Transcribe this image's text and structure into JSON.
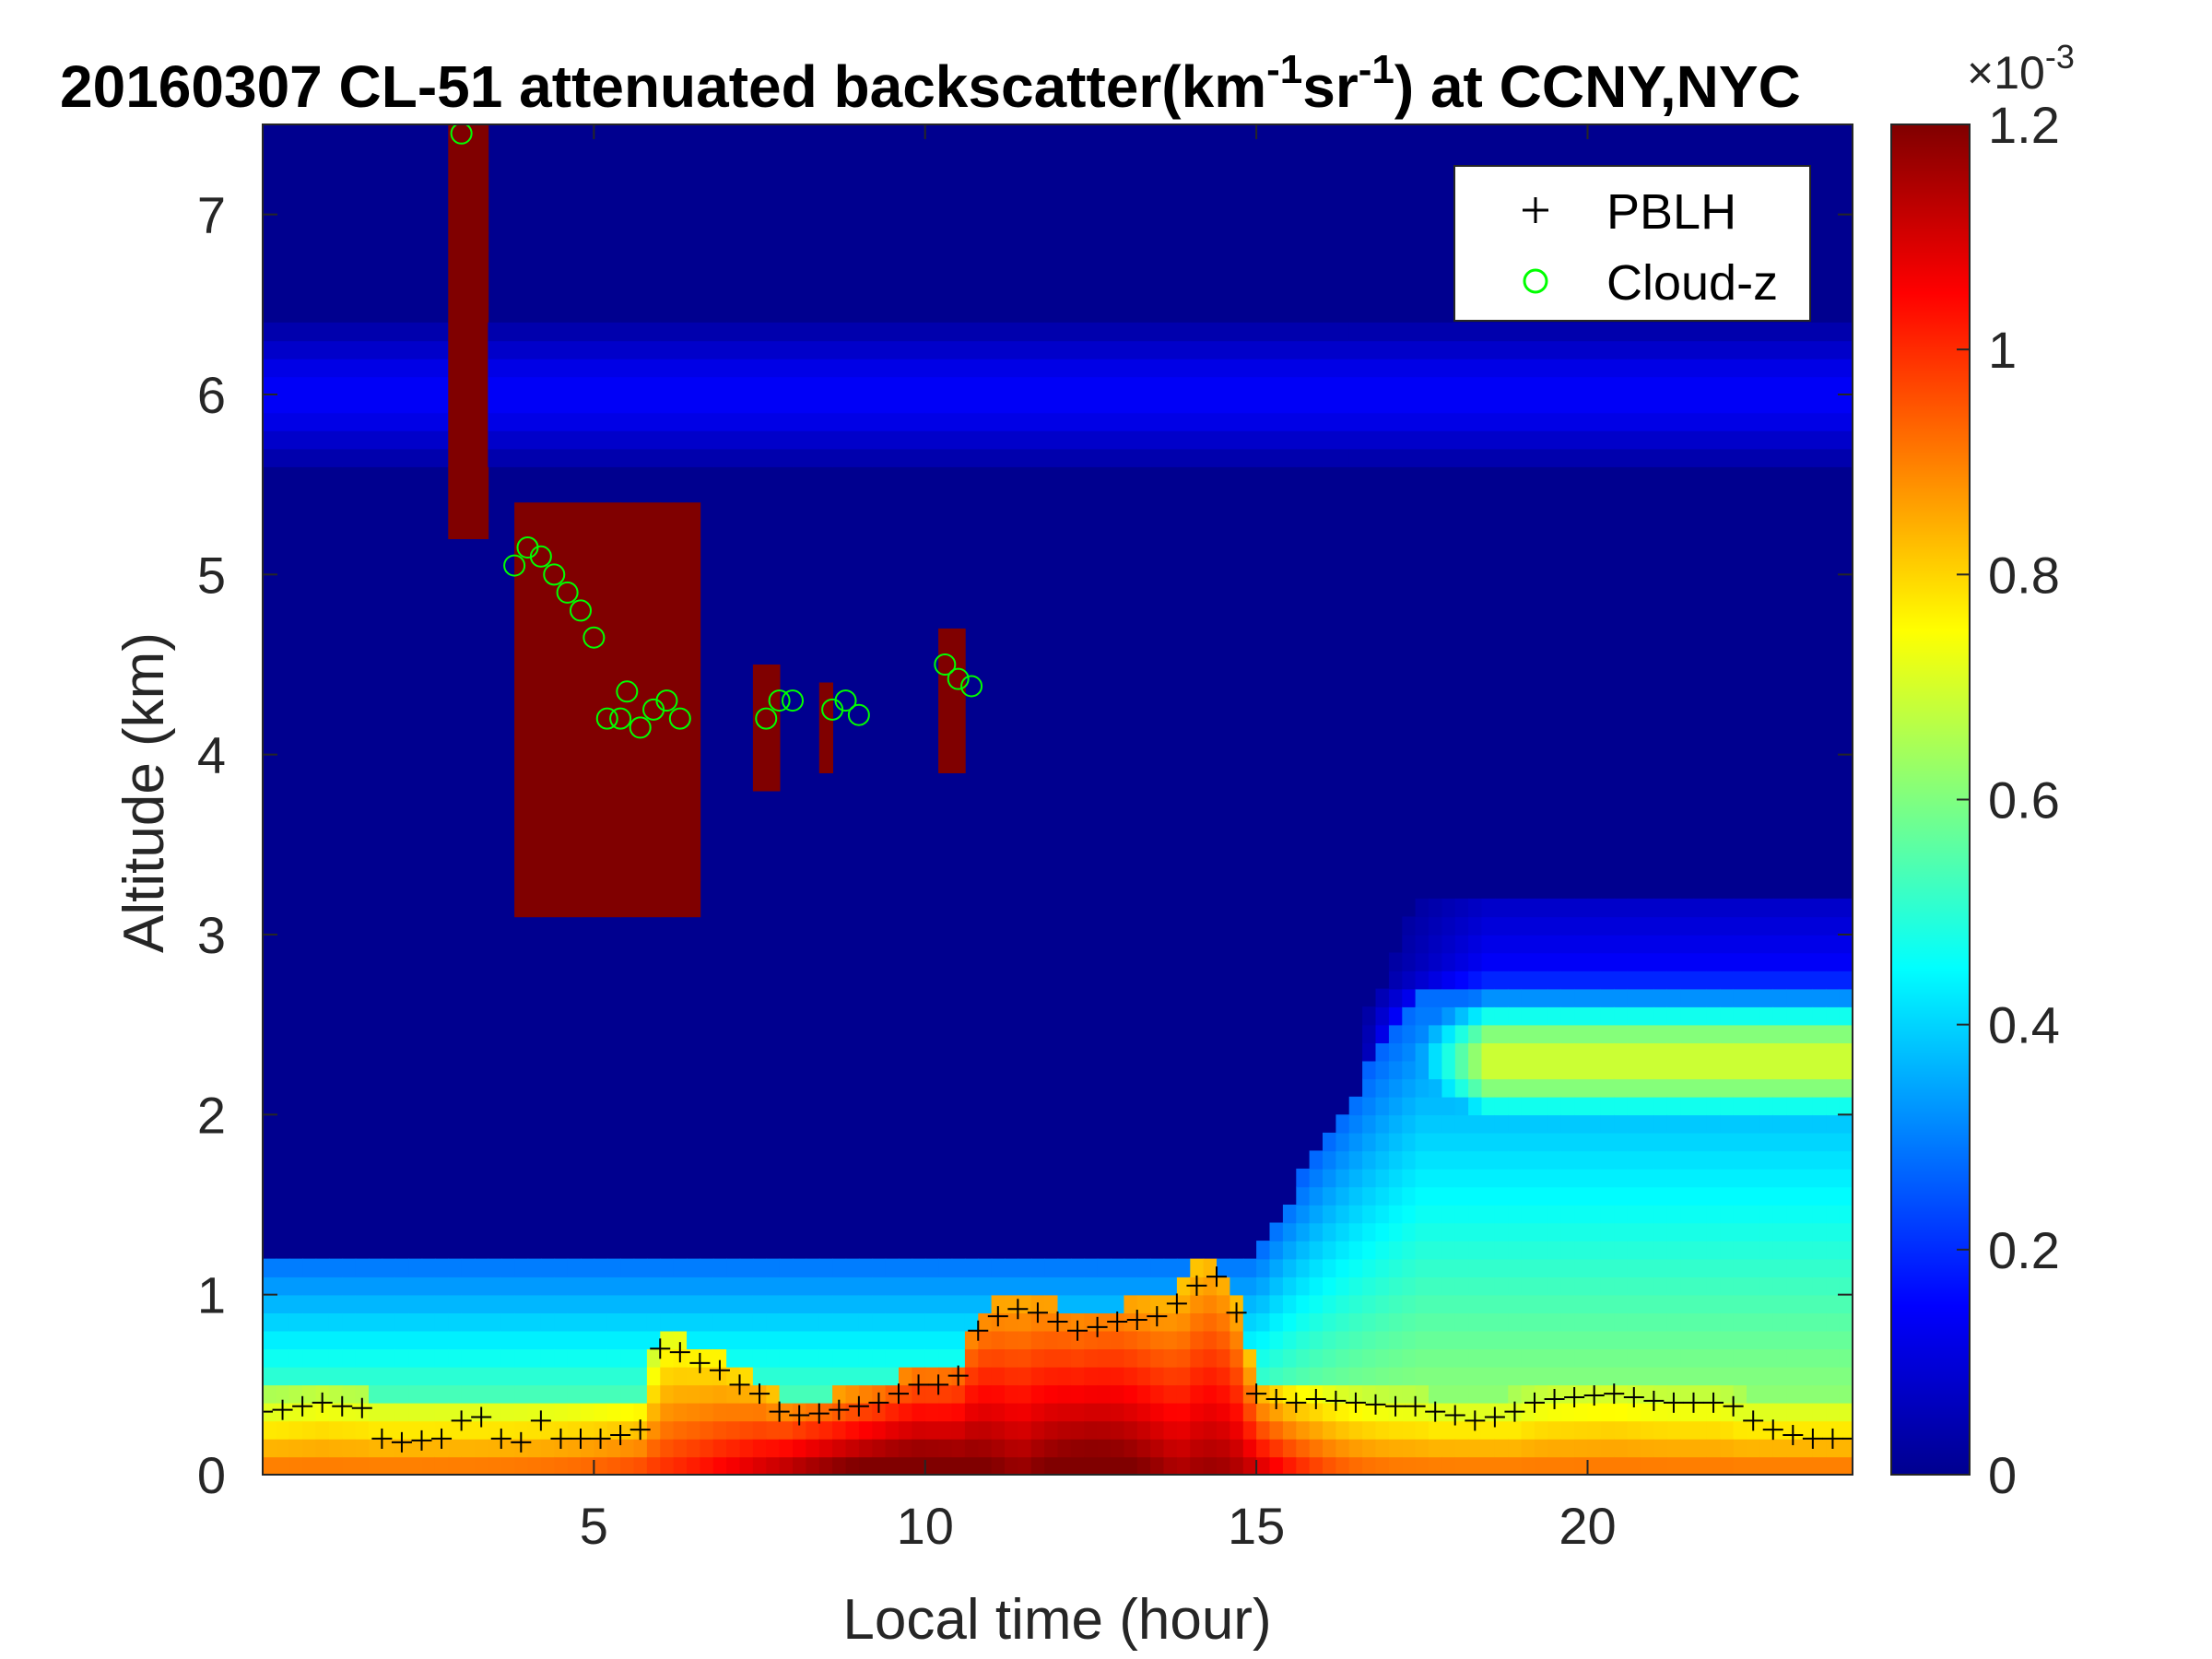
{
  "chart_data": {
    "type": "heatmap",
    "title": {
      "prefix": "20160307  CL-51 attenuated backscatter(km",
      "sup1": "-1",
      "middle": "sr",
      "sup2": "-1",
      "suffix": ") at CCNY,NYC"
    },
    "xlabel": "Local time (hour)",
    "ylabel": "Altitude (km)",
    "xlim": [
      0,
      24
    ],
    "ylim": [
      0,
      7.5
    ],
    "x_ticks": [
      {
        "value": 5,
        "label": "5"
      },
      {
        "value": 10,
        "label": "10"
      },
      {
        "value": 15,
        "label": "15"
      },
      {
        "value": 20,
        "label": "20"
      }
    ],
    "y_ticks": [
      {
        "value": 0,
        "label": "0"
      },
      {
        "value": 1,
        "label": "1"
      },
      {
        "value": 2,
        "label": "2"
      },
      {
        "value": 3,
        "label": "3"
      },
      {
        "value": 4,
        "label": "4"
      },
      {
        "value": 5,
        "label": "5"
      },
      {
        "value": 6,
        "label": "6"
      },
      {
        "value": 7,
        "label": "7"
      }
    ],
    "colorbar": {
      "colormap": "jet",
      "range": [
        0,
        0.0012
      ],
      "exponent_label": "×10",
      "exponent_sup": "-3",
      "ticks": [
        {
          "value": 0,
          "label": "0"
        },
        {
          "value": 0.2,
          "label": "0.2"
        },
        {
          "value": 0.4,
          "label": "0.4"
        },
        {
          "value": 0.6,
          "label": "0.6"
        },
        {
          "value": 0.8,
          "label": "0.8"
        },
        {
          "value": 1.0,
          "label": "1"
        },
        {
          "value": 1.2,
          "label": "1.2"
        }
      ]
    },
    "legend": {
      "position": "top-right",
      "entries": [
        {
          "name": "PBLH",
          "marker": "+",
          "color": "#000000"
        },
        {
          "name": "Cloud-z",
          "marker": "o",
          "color": "#00ff00"
        }
      ]
    },
    "series": [
      {
        "name": "PBLH",
        "marker": "+",
        "x": [
          0,
          0.3,
          0.6,
          0.9,
          1.2,
          1.5,
          1.8,
          2.1,
          2.4,
          2.7,
          3.0,
          3.3,
          3.6,
          3.9,
          4.2,
          4.5,
          4.8,
          5.1,
          5.4,
          5.7,
          6.0,
          6.3,
          6.6,
          6.9,
          7.2,
          7.5,
          7.8,
          8.1,
          8.4,
          8.7,
          9.0,
          9.3,
          9.6,
          9.9,
          10.2,
          10.5,
          10.8,
          11.1,
          11.4,
          11.7,
          12.0,
          12.3,
          12.6,
          12.9,
          13.2,
          13.5,
          13.8,
          14.1,
          14.4,
          14.7,
          15.0,
          15.3,
          15.6,
          15.9,
          16.2,
          16.5,
          16.8,
          17.1,
          17.4,
          17.7,
          18.0,
          18.3,
          18.6,
          18.9,
          19.2,
          19.5,
          19.8,
          20.1,
          20.4,
          20.7,
          21.0,
          21.3,
          21.6,
          21.9,
          22.2,
          22.5,
          22.8,
          23.1,
          23.4,
          23.7,
          24.0
        ],
        "y": [
          0.35,
          0.36,
          0.38,
          0.4,
          0.38,
          0.37,
          0.2,
          0.18,
          0.19,
          0.2,
          0.3,
          0.32,
          0.2,
          0.18,
          0.3,
          0.2,
          0.2,
          0.2,
          0.22,
          0.25,
          0.7,
          0.68,
          0.62,
          0.58,
          0.5,
          0.45,
          0.35,
          0.33,
          0.34,
          0.36,
          0.38,
          0.4,
          0.45,
          0.5,
          0.5,
          0.55,
          0.8,
          0.88,
          0.92,
          0.9,
          0.85,
          0.8,
          0.82,
          0.85,
          0.86,
          0.88,
          0.95,
          1.05,
          1.1,
          0.9,
          0.45,
          0.42,
          0.4,
          0.42,
          0.41,
          0.4,
          0.39,
          0.38,
          0.38,
          0.35,
          0.33,
          0.3,
          0.32,
          0.35,
          0.4,
          0.42,
          0.43,
          0.44,
          0.45,
          0.43,
          0.41,
          0.4,
          0.4,
          0.4,
          0.38,
          0.3,
          0.25,
          0.22,
          0.2,
          0.2,
          0.2
        ]
      },
      {
        "name": "Cloud-z",
        "marker": "o",
        "x": [
          3.0,
          3.8,
          4.0,
          4.2,
          4.4,
          4.6,
          4.8,
          5.0,
          5.2,
          5.4,
          5.5,
          5.7,
          5.9,
          6.1,
          6.3,
          7.6,
          7.8,
          8.0,
          8.6,
          8.8,
          9.0,
          10.3,
          10.5,
          10.7
        ],
        "y": [
          7.45,
          5.05,
          5.15,
          5.1,
          5.0,
          4.9,
          4.8,
          4.65,
          4.2,
          4.2,
          4.35,
          4.15,
          4.25,
          4.3,
          4.2,
          4.2,
          4.3,
          4.3,
          4.25,
          4.3,
          4.22,
          4.5,
          4.42,
          4.38
        ]
      }
    ],
    "field_description": {
      "mixed_layer": {
        "peak_x": [
          9,
          11.8
        ],
        "peak_value": 0.0012
      },
      "elevated_layer": {
        "x_range": [
          16.5,
          24
        ],
        "altitude_range": [
          1.8,
          2.8
        ],
        "value": 0.0007
      },
      "clouds": [
        {
          "x_range": [
            3.9,
            6.6
          ],
          "altitude_range": [
            3.1,
            5.4
          ],
          "value": 0.0012
        },
        {
          "x_range": [
            7.5,
            7.8
          ],
          "altitude_range": [
            3.8,
            4.5
          ],
          "value": 0.0012
        },
        {
          "x_range": [
            8.5,
            8.7
          ],
          "altitude_range": [
            3.9,
            4.4
          ],
          "value": 0.0012
        },
        {
          "x_range": [
            10.3,
            10.7
          ],
          "altitude_range": [
            3.95,
            4.7
          ],
          "value": 0.0012
        },
        {
          "x_range": [
            2.8,
            3.4
          ],
          "altitude_range": [
            5.2,
            7.5
          ],
          "value": 0.0012
        }
      ]
    }
  }
}
